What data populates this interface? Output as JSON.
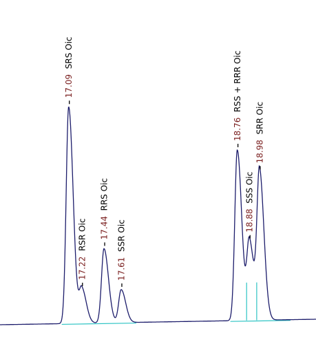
{
  "chart_data": {
    "type": "chromatogram",
    "x": [
      17.09,
      17.22,
      17.44,
      17.61,
      18.76,
      18.88,
      18.98
    ],
    "values": [
      315,
      50,
      108,
      48,
      248,
      115,
      215
    ],
    "peak_names": [
      "SRS Oic",
      "RSR Oic",
      "RRS Oic",
      "SSR Oic",
      "RSS + RRR Oic",
      "SSS Oic",
      "SRR Oic"
    ],
    "xlim": [
      16.41,
      19.54
    ],
    "ylim": [
      0,
      472
    ],
    "color": "#1c1c6b",
    "time_color": "#7a1f1f",
    "baseline_color": "#2ec4c4"
  }
}
